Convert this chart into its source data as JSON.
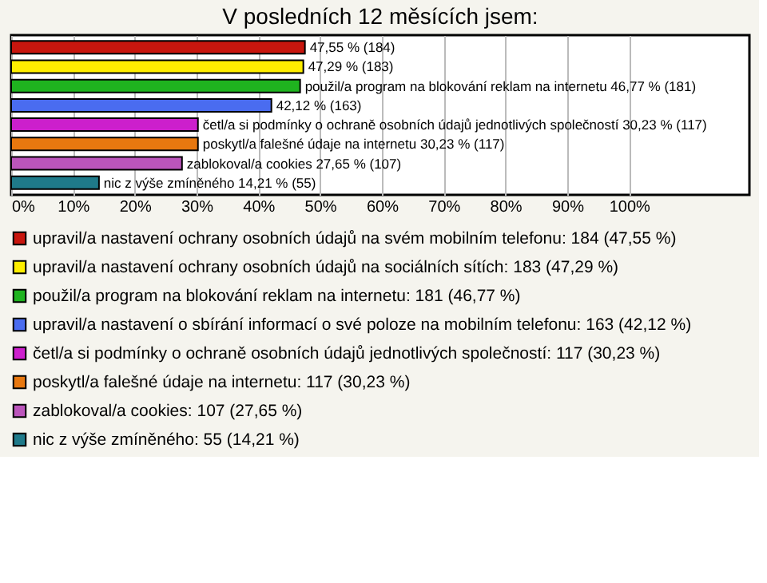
{
  "chart_data": {
    "type": "bar",
    "orientation": "horizontal",
    "title": "V posledních 12 měsících jsem:",
    "categories": [
      null
    ],
    "series": [
      {
        "name": "upravil/a nastavení ochrany osobních údajů na svém mobilním telefonu: 184 (47,55 %)",
        "color": "#c8160e",
        "values": [
          47.55
        ],
        "value_labels": [
          "47,55 % (184)"
        ]
      },
      {
        "name": "upravil/a nastavení ochrany osobních údajů na sociálních sítích: 183 (47,29 %)",
        "color": "#ffee00",
        "values": [
          47.29
        ],
        "value_labels": [
          "47,29 % (183)"
        ]
      },
      {
        "name": "použil/a program na blokování reklam na internetu: 181 (46,77 %)",
        "color": "#1fb31f",
        "values": [
          46.77
        ],
        "value_labels": [
          "použil/a program na blokování reklam na internetu 46,77 % (181)"
        ]
      },
      {
        "name": "upravil/a nastavení o sbírání informací o své poloze na mobilním telefonu: 163 (42,12 %)",
        "color": "#4a6cf0",
        "values": [
          42.12
        ],
        "value_labels": [
          "42,12 % (163)"
        ]
      },
      {
        "name": "četl/a si podmínky o ochraně osobních údajů jednotlivých společností: 117 (30,23 %)",
        "color": "#cc1fcc",
        "values": [
          30.23
        ],
        "value_labels": [
          "četl/a si podmínky o ochraně osobních údajů jednotlivých společností 30,23 % (117)"
        ]
      },
      {
        "name": "poskytl/a falešné údaje na internetu: 117 (30,23 %)",
        "color": "#e8780f",
        "values": [
          30.23
        ],
        "value_labels": [
          "poskytl/a falešné údaje na internetu 30,23 % (117)"
        ]
      },
      {
        "name": "zablokoval/a cookies: 107 (27,65 %)",
        "color": "#bb55bb",
        "values": [
          27.65
        ],
        "value_labels": [
          "zablokoval/a cookies 27,65 % (107)"
        ]
      },
      {
        "name": "nic z výše zmíněného: 55 (14,21 %)",
        "color": "#1f7a8a",
        "values": [
          14.21
        ],
        "value_labels": [
          "nic z výše zmíněného 14,21 % (55)"
        ]
      }
    ],
    "xlim": [
      0,
      119.5
    ],
    "xticks": [
      {
        "value": 0,
        "label": "0%"
      },
      {
        "value": 10,
        "label": "10%"
      },
      {
        "value": 20,
        "label": "20%"
      },
      {
        "value": 30,
        "label": "30%"
      },
      {
        "value": 40,
        "label": "40%"
      },
      {
        "value": 50,
        "label": "50%"
      },
      {
        "value": 60,
        "label": "60%"
      },
      {
        "value": 70,
        "label": "70%"
      },
      {
        "value": 80,
        "label": "80%"
      },
      {
        "value": 90,
        "label": "90%"
      },
      {
        "value": 100,
        "label": "100%"
      }
    ],
    "grid": "x",
    "legend": "bottom",
    "tick_labels": "x"
  }
}
